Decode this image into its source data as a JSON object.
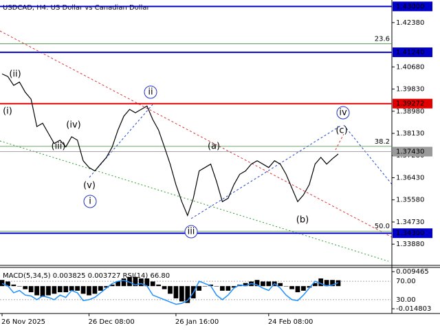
{
  "chart_data": [
    {
      "type": "line",
      "title": "USDCAD, H4:  US Dollar vs Canadian Dollar",
      "color": "#000000",
      "categories": [
        "26 Nov 2025",
        null,
        null,
        null,
        null,
        null,
        null,
        null,
        null,
        null,
        null,
        null,
        null,
        null,
        null,
        "26 Dec 08:00",
        null,
        null,
        null,
        null,
        null,
        null,
        null,
        null,
        null,
        null,
        null,
        null,
        null,
        null,
        "26 Jan 16:00",
        null,
        null,
        null,
        null,
        null,
        null,
        null,
        null,
        null,
        null,
        null,
        null,
        null,
        null,
        null,
        "24 Feb 08:00",
        null,
        null,
        null,
        null,
        null,
        null,
        null,
        null,
        null,
        null,
        null,
        null
      ],
      "values": [
        1.4041,
        1.4031,
        1.3997,
        1.401,
        1.3971,
        1.3944,
        1.3839,
        1.3852,
        1.3813,
        1.3774,
        1.3787,
        1.3761,
        1.38,
        1.3787,
        1.3708,
        1.3682,
        1.3669,
        1.3695,
        1.3721,
        1.3761,
        1.3826,
        1.3879,
        1.3905,
        1.3892,
        1.3905,
        1.3918,
        1.3866,
        1.3826,
        1.3761,
        1.3695,
        1.3616,
        1.3551,
        1.3498,
        1.3564,
        1.3669,
        1.3682,
        1.3695,
        1.3629,
        1.3551,
        1.3564,
        1.3616,
        1.3656,
        1.3669,
        1.3695,
        1.3708,
        1.3695,
        1.3682,
        1.3708,
        1.3695,
        1.3656,
        1.3603,
        1.3551,
        1.3577,
        1.3616,
        1.3695,
        1.3721,
        1.3695,
        1.3716,
        1.3734
      ],
      "ylim": [
        1.33093,
        1.43246
      ],
      "yticks": [
        {
          "value": 1.4238,
          "label": "1.42380"
        },
        {
          "value": 1.4068,
          "label": "1.40680"
        },
        {
          "value": 1.3983,
          "label": "1.39830"
        },
        {
          "value": 1.3898,
          "label": "1.38980"
        },
        {
          "value": 1.3813,
          "label": "1.38130"
        },
        {
          "value": 1.3728,
          "label": "1.37280"
        },
        {
          "value": 1.3643,
          "label": "1.36430"
        },
        {
          "value": 1.3558,
          "label": "1.35580"
        },
        {
          "value": 1.3473,
          "label": "1.34730"
        },
        {
          "value": 1.3388,
          "label": "1.33880"
        }
      ],
      "levels": [
        {
          "value": 1.43,
          "label": "1.43000",
          "color": "#0000c8"
        },
        {
          "value": 1.4124,
          "label": "1.41240",
          "color": "#0000c8"
        },
        {
          "value": 1.39272,
          "label": "1.39272",
          "color": "#e00000"
        },
        {
          "value": 1.343,
          "label": "1.34300",
          "color": "#0000c8"
        }
      ],
      "current": {
        "value": 1.3743,
        "label": "1.37430",
        "color": "#9a9a9a"
      },
      "fib_levels": [
        {
          "value": 1.41567,
          "label": "23.6"
        },
        {
          "value": 1.37632,
          "label": "38.2"
        },
        {
          "value": 1.34379,
          "label": "50.0"
        }
      ],
      "fib_color": "#3c8a3c",
      "annotations": [
        {
          "text": "(ii)",
          "color": "#e0201c"
        },
        {
          "text": "(i)",
          "color": "#e0201c"
        },
        {
          "text": "(iv)",
          "color": "#e0201c"
        },
        {
          "text": "(iii)",
          "color": "#e0201c"
        },
        {
          "text": "(v)",
          "color": "#e0201c"
        },
        {
          "text": "i",
          "color": "#2030c8"
        },
        {
          "text": "ii",
          "color": "#2030c8"
        },
        {
          "text": "iii",
          "color": "#2030c8"
        },
        {
          "text": "iv",
          "color": "#2030c8"
        },
        {
          "text": "(a)",
          "color": "#e0201c"
        },
        {
          "text": "(b)",
          "color": "#e0201c"
        },
        {
          "text": "(c)",
          "color": "#e0201c"
        }
      ]
    },
    {
      "type": "bar",
      "title": "MACD(5,34,5) 0.003825 0.003727 RSI(14) 66.80",
      "series": [
        {
          "color": "#000000",
          "values": [
            0.004,
            0.003,
            0.001,
            0.0,
            -0.002,
            -0.004,
            -0.006,
            -0.007,
            -0.006,
            -0.005,
            -0.004,
            -0.004,
            -0.003,
            -0.003,
            -0.005,
            -0.006,
            -0.005,
            -0.003,
            -0.001,
            0.001,
            0.003,
            0.005,
            0.006,
            0.006,
            0.005,
            0.005,
            0.003,
            0.001,
            -0.002,
            -0.005,
            -0.008,
            -0.01,
            -0.011,
            -0.008,
            -0.003,
            0.0,
            0.001,
            0.0,
            -0.003,
            -0.003,
            -0.001,
            0.001,
            0.002,
            0.003,
            0.004,
            0.003,
            0.003,
            0.003,
            0.002,
            0.0,
            -0.002,
            -0.004,
            -0.003,
            -0.001,
            0.002,
            0.005,
            0.004,
            0.004,
            0.0038
          ]
        },
        {
          "color": "#1e90ff",
          "axis": "y2",
          "values": [
            65,
            60,
            45,
            50,
            40,
            38,
            30,
            38,
            35,
            30,
            40,
            35,
            50,
            45,
            28,
            30,
            35,
            45,
            55,
            65,
            70,
            72,
            68,
            62,
            65,
            60,
            40,
            35,
            30,
            25,
            20,
            22,
            28,
            45,
            70,
            65,
            60,
            40,
            30,
            40,
            55,
            62,
            60,
            65,
            62,
            55,
            50,
            65,
            55,
            40,
            30,
            28,
            40,
            55,
            70,
            65,
            60,
            62,
            66.8
          ]
        }
      ],
      "ylim": [
        -0.0179,
        0.0122
      ],
      "yticks": [
        0.009465,
        -0.014803
      ],
      "y2lim": [
        0,
        100
      ],
      "y2ticks": [
        {
          "value": 70,
          "label": "70.00"
        },
        {
          "value": 30,
          "label": "30.00"
        }
      ]
    }
  ]
}
